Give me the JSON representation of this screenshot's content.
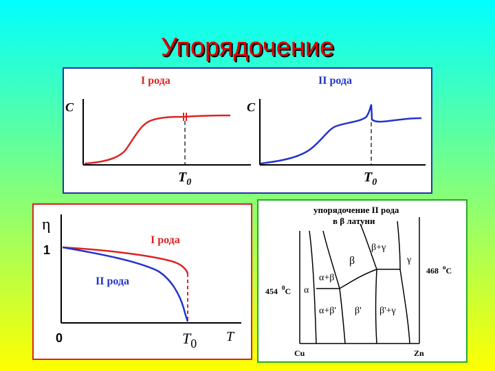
{
  "title": "Упорядочение",
  "heat_panel": {
    "first_order_label": "I рода",
    "second_order_label": "II рода",
    "y_label": "C",
    "t0_main": "T",
    "t0_sub": "0",
    "colors": {
      "first": "#dd2222",
      "second": "#2233cc"
    }
  },
  "order_panel": {
    "y_label": "η",
    "y_one": "1",
    "origin": "0",
    "x_label": "T",
    "t0_main": "T",
    "t0_sub": "0",
    "first_order_label": "I рода",
    "second_order_label": "II рода"
  },
  "phase_panel": {
    "title_line1": "упорядочение II рода",
    "title_line2": "в  β  латуни",
    "temp_left": "454",
    "temp_left_unit": "C",
    "temp_left_deg": "0",
    "temp_right": "468",
    "temp_right_unit": "C",
    "temp_right_deg": "o",
    "x_left": "Cu",
    "x_right": "Zn",
    "regions": {
      "alpha": "α",
      "alpha_beta": "α+β",
      "beta": "β",
      "beta_gamma": "β+γ",
      "gamma": "γ",
      "alpha_beta_prime": "α+β'",
      "beta_prime": "β'",
      "beta_prime_gamma": "β'+γ"
    }
  }
}
